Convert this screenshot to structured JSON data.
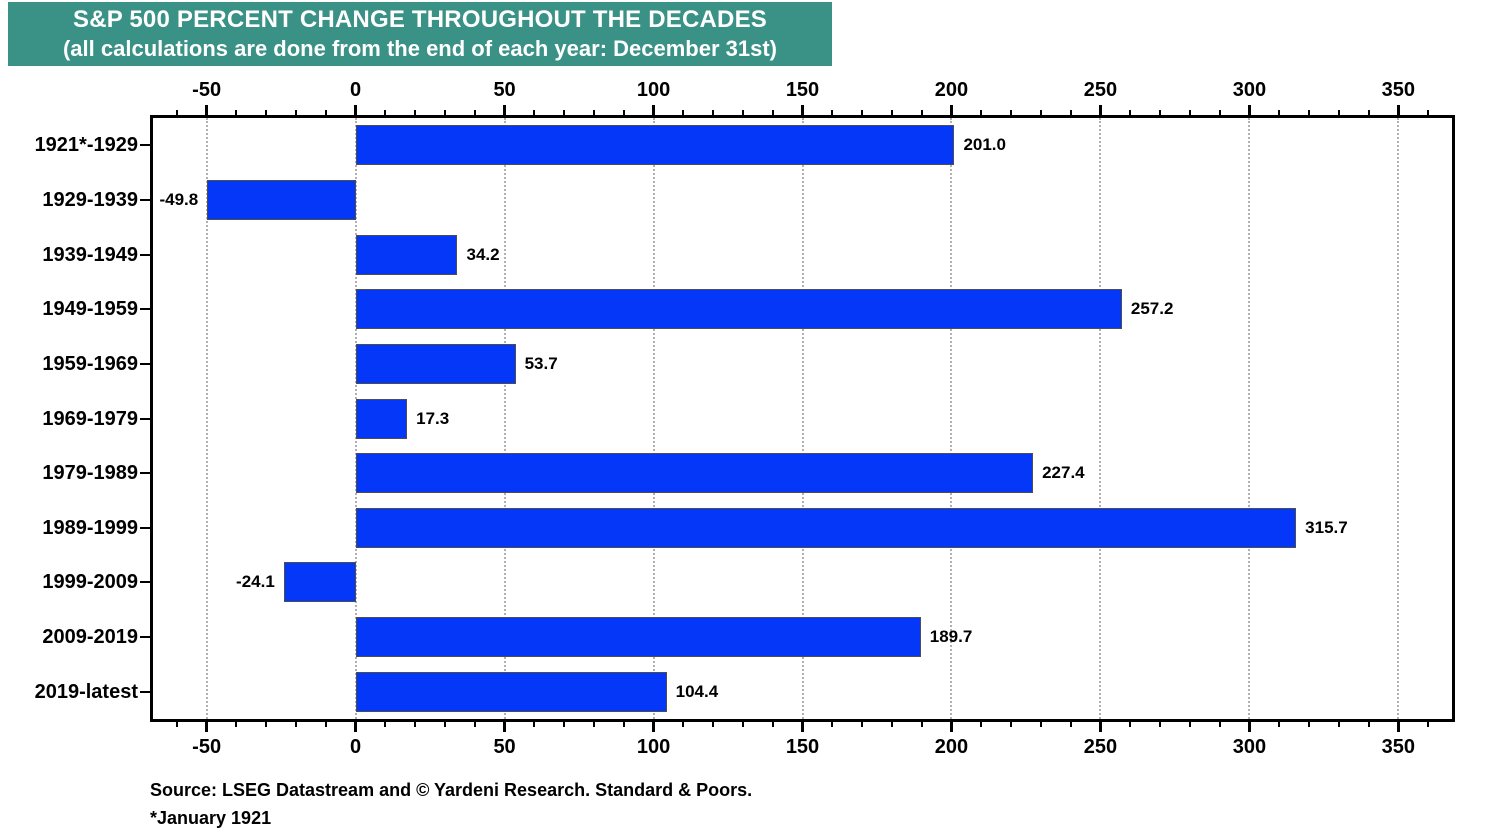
{
  "title": {
    "line1": "S&P 500 PERCENT CHANGE THROUGHOUT THE DECADES",
    "line2": "(all calculations are done from the end of each year: December 31st)"
  },
  "footer": {
    "source": "Source: LSEG Datastream and © Yardeni Research. Standard & Poors.",
    "note": "*January 1921"
  },
  "colors": {
    "title_bg": "#3a9186",
    "title_text": "#ffffff",
    "bar_fill": "#0537f8",
    "bar_border": "#4d4d4d",
    "gridline": "#b0b0b0",
    "axis": "#000000",
    "text": "#000000"
  },
  "chart_data": {
    "type": "bar",
    "orientation": "horizontal",
    "title": "S&P 500 PERCENT CHANGE THROUGHOUT THE DECADES",
    "subtitle": "(all calculations are done from the end of each year: December 31st)",
    "categories": [
      "1921*-1929",
      "1929-1939",
      "1939-1949",
      "1949-1959",
      "1959-1969",
      "1969-1979",
      "1979-1989",
      "1989-1999",
      "1999-2009",
      "2009-2019",
      "2019-latest"
    ],
    "values": [
      201.0,
      -49.8,
      34.2,
      257.2,
      53.7,
      17.3,
      227.4,
      315.7,
      -24.1,
      189.7,
      104.4
    ],
    "value_labels": [
      "201.0",
      "-49.8",
      "34.2",
      "257.2",
      "53.7",
      "17.3",
      "227.4",
      "315.7",
      "-24.1",
      "189.7",
      "104.4"
    ],
    "xlabel": "",
    "ylabel": "",
    "xlim": [
      -68,
      368
    ],
    "major_ticks": [
      -50,
      0,
      50,
      100,
      150,
      200,
      250,
      300,
      350
    ],
    "minor_tick_step": 10,
    "grid": "vertical-dotted-at-major-ticks",
    "axis_label_positions": "top-and-bottom",
    "legend": "none",
    "value_label_position": "outside-bar-end"
  }
}
